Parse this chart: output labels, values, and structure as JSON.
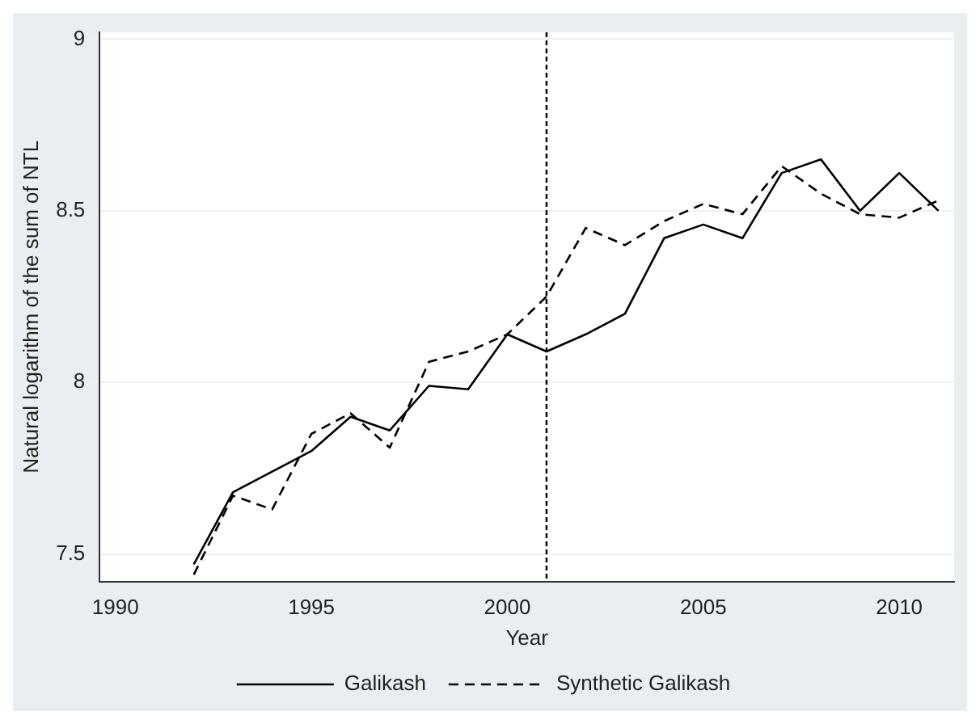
{
  "chart_data": {
    "type": "line",
    "xlabel": "Year",
    "ylabel": "Natural logarithm of the sum of NTL",
    "x": [
      1992,
      1993,
      1994,
      1995,
      1996,
      1997,
      1998,
      1999,
      2000,
      2001,
      2002,
      2003,
      2004,
      2005,
      2006,
      2007,
      2008,
      2009,
      2010,
      2011
    ],
    "series": [
      {
        "name": "Galikash",
        "color": "#000000",
        "line_style": "solid",
        "values": [
          7.47,
          7.68,
          7.74,
          7.8,
          7.9,
          7.86,
          7.99,
          7.98,
          8.14,
          8.09,
          8.14,
          8.2,
          8.42,
          8.46,
          8.42,
          8.61,
          8.65,
          8.5,
          8.61,
          8.5
        ]
      },
      {
        "name": "Synthetic Galikash",
        "color": "#000000",
        "line_style": "dashed",
        "values": [
          7.44,
          7.67,
          7.63,
          7.85,
          7.91,
          7.81,
          8.06,
          8.09,
          8.14,
          8.25,
          8.45,
          8.4,
          8.47,
          8.52,
          8.49,
          8.63,
          8.55,
          8.49,
          8.48,
          8.53
        ]
      }
    ],
    "xlim": [
      1989.6,
      2011.4
    ],
    "xticks": [
      1990,
      1995,
      2000,
      2005,
      2010
    ],
    "ylim": [
      7.42,
      9.02
    ],
    "yticks": [
      7.5,
      8,
      8.5,
      9
    ],
    "grid": "y",
    "legend": "bottom",
    "marker": "none",
    "ref_lines": [
      {
        "axis": "x",
        "value": 2001,
        "line_style": "dashed",
        "color": "#000000"
      }
    ]
  }
}
